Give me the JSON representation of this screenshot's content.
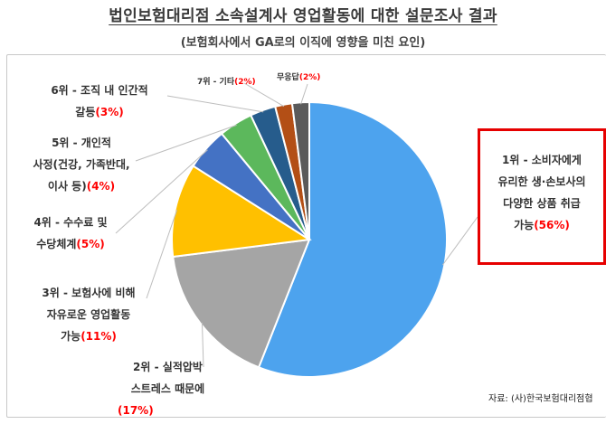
{
  "chart_data": {
    "type": "pie",
    "title": "법인보험대리점 소속설계사 영업활동에 대한 설문조사 결과",
    "subtitle": "(보험회사에서 GA로의 이직에 영향을 미친 요인)",
    "source": "자료: (사)한국보험대리점협",
    "slices": [
      {
        "rank": "1위",
        "lines": [
          "1위 - 소비자에게",
          "유리한 생·손보사의",
          "다양한 상품 취급",
          "가능"
        ],
        "pct_text": "(56%)",
        "value": 56,
        "color": "#4da3ee"
      },
      {
        "rank": "2위",
        "lines": [
          "2위 - 실적압박",
          "스트레스 때문에",
          ""
        ],
        "pct_text": "(17%)",
        "value": 17,
        "color": "#a5a5a5"
      },
      {
        "rank": "3위",
        "lines": [
          "3위 - 보험사에 비해",
          "자유로운 영업활동",
          "가능"
        ],
        "pct_text": "(11%)",
        "value": 11,
        "color": "#ffc000"
      },
      {
        "rank": "4위",
        "lines": [
          "4위 - 수수료 및",
          "수당체계"
        ],
        "pct_text": "(5%)",
        "value": 5,
        "color": "#4472c4"
      },
      {
        "rank": "5위",
        "lines": [
          "5위 - 개인적",
          "사정(건강, 가족반대,",
          "이사 등)"
        ],
        "pct_text": "(4%)",
        "value": 4,
        "color": "#5cb85c"
      },
      {
        "rank": "6위",
        "lines": [
          "6위 - 조직 내 인간적",
          "갈등"
        ],
        "pct_text": "(3%)",
        "value": 3,
        "color": "#265c8c"
      },
      {
        "rank": "7위",
        "lines": [
          "7위 - 기타"
        ],
        "pct_text": "(2%)",
        "value": 2,
        "color": "#b34f16"
      },
      {
        "rank": "무응답",
        "lines": [
          "무응답"
        ],
        "pct_text": "(2%)",
        "value": 2,
        "color": "#5a5a5a"
      }
    ]
  }
}
